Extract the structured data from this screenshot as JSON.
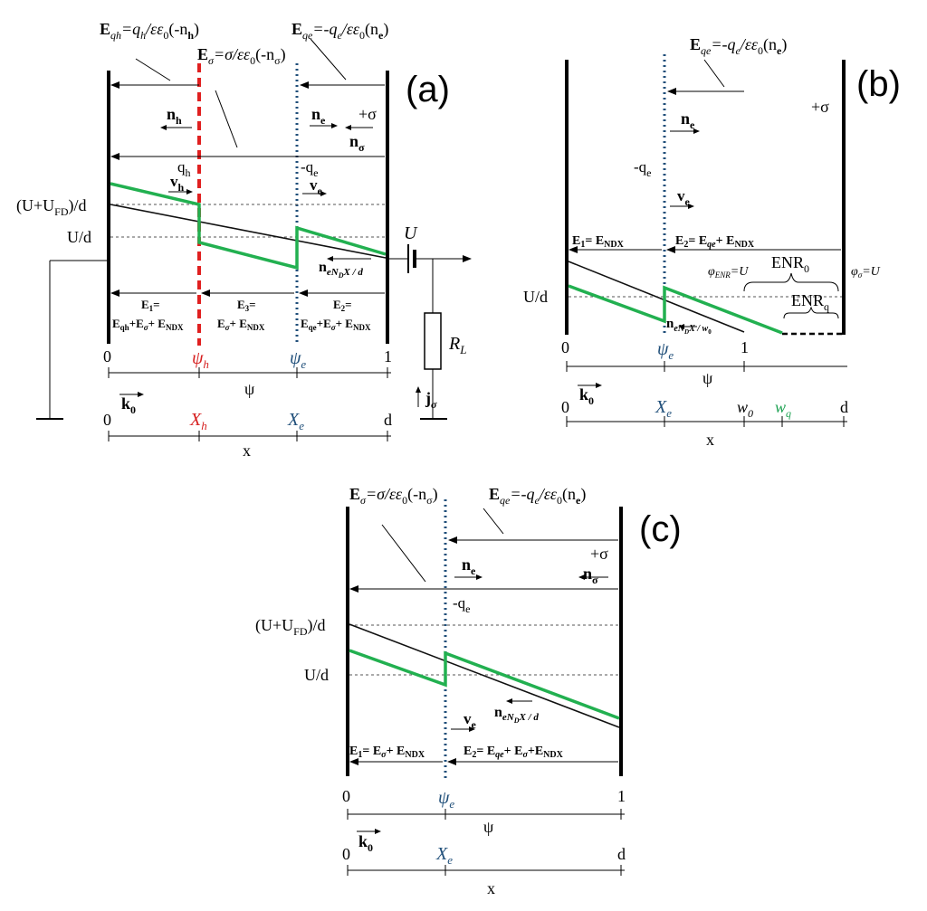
{
  "panel_a": {
    "label": "(a)",
    "eqh_main": "E",
    "eqh_sub": "qh",
    "eqh_eq": "=q",
    "eqh_sub2": "h",
    "eqh_rest": "/εε",
    "eqh_sub3": "0",
    "eqh_end": "(-n",
    "eqh_sub4": "h",
    "eqh_close": ")",
    "esig_main": "E",
    "esig_sub": "σ",
    "esig_rest": "=σ/εε",
    "esig_sub2": "0",
    "esig_end": "(-n",
    "esig_sub3": "σ",
    "esig_close": ")",
    "eqe_main": "E",
    "eqe_sub": "qe",
    "eqe_eq": "=-q",
    "eqe_sub2": "e",
    "eqe_rest": "/εε",
    "eqe_sub3": "0",
    "eqe_end": "(n",
    "eqe_sub4": "e",
    "eqe_close": ")",
    "nh": "n",
    "nh_sub": "h",
    "ne": "n",
    "ne_sub": "e",
    "plus_sigma": "+σ",
    "nsigma": "n",
    "nsigma_sub": "σ",
    "qh": "q",
    "qh_sub": "h",
    "qe": "-q",
    "qe_sub": "e",
    "vh": "v",
    "vh_sub": "h",
    "ve": "v",
    "ve_sub": "e",
    "ufd": "(U+U",
    "ufd_sub": "FD",
    "ufd_end": ")/d",
    "ud": "U/d",
    "U": "U",
    "nND": "n",
    "nND_sub": "eN",
    "nND_sub2": "D",
    "nND_end": "X / d",
    "e1_line1": "E",
    "e1_line1_sub": "1",
    "e1_line1_end": "=",
    "e1_line2": "E",
    "e1_l2s1": "qh",
    "e1_l2p1": "+E",
    "e1_l2s2": "σ",
    "e1_l2p2": "+ E",
    "e1_l2s3": "NDX",
    "e3_line1": "E",
    "e3_line1_sub": "3",
    "e3_line1_end": "=",
    "e3_line2": "E",
    "e3_l2s1": "σ",
    "e3_l2p1": "+ E",
    "e3_l2s2": "NDX",
    "e2_line1": "E",
    "e2_line1_sub": "2",
    "e2_line1_end": "=",
    "e2_line2": "E",
    "e2_l2s1": "qe",
    "e2_l2p1": "+E",
    "e2_l2s2": "σ",
    "e2_l2p2": "+ E",
    "e2_l2s3": "NDX",
    "RL": "R",
    "RL_sub": "L",
    "jsig": "j",
    "jsig_sub": "σ",
    "t0": "0",
    "psi_h": "ψ",
    "psi_h_sub": "h",
    "psi_e": "ψ",
    "psi_e_sub": "e",
    "t1": "1",
    "k0": "k",
    "k0_sub": "0",
    "psi": "ψ",
    "x0": "0",
    "Xh": "X",
    "Xh_sub": "h",
    "Xe": "X",
    "Xe_sub": "e",
    "d": "d",
    "x": "x"
  },
  "panel_b": {
    "label": "(b)",
    "eqe_main": "E",
    "eqe_sub": "qe",
    "eqe_eq": "=-q",
    "eqe_sub2": "e",
    "eqe_rest": "/εε",
    "eqe_sub3": "0",
    "eqe_end": "(n",
    "eqe_sub4": "e",
    "eqe_close": ")",
    "ne": "n",
    "ne_sub": "e",
    "plus_sigma": "+σ",
    "qe": "-q",
    "qe_sub": "e",
    "ve": "v",
    "ve_sub": "e",
    "e1": "E",
    "e1_sub": "1",
    "e1_rest": "= E",
    "e1_sub2": "NDX",
    "e2": "E",
    "e2_sub": "2",
    "e2_rest": "= E",
    "e2_sub2": "qe",
    "e2_rest2": "+ E",
    "e2_sub3": "NDX",
    "phi_enr": "φ",
    "phi_enr_sub": "ENR",
    "phi_enr_end": "=U",
    "enr0": "ENR",
    "enr0_sub": "0",
    "phi_sig": "φ",
    "phi_sig_sub": "σ",
    "phi_sig_end": "=U",
    "ud": "U/d",
    "enrq": "ENR",
    "enrq_sub": "q",
    "nND": "n",
    "nND_sub": "eN",
    "nND_sub2": "D",
    "nND_end": "X / w",
    "nND_sub3": "0",
    "t0": "0",
    "psi_e": "ψ",
    "psi_e_sub": "e",
    "t1": "1",
    "k0": "k",
    "k0_sub": "0",
    "psi": "ψ",
    "x0": "0",
    "Xe": "X",
    "Xe_sub": "e",
    "w0": "w",
    "w0_sub": "0",
    "wq": "w",
    "wq_sub": "q",
    "d": "d",
    "x": "x"
  },
  "panel_c": {
    "label": "(c)",
    "esig_main": "E",
    "esig_sub": "σ",
    "esig_rest": "=σ/εε",
    "esig_sub2": "0",
    "esig_end": "(-n",
    "esig_sub3": "σ",
    "esig_close": ")",
    "eqe_main": "E",
    "eqe_sub": "qe",
    "eqe_eq": "=-q",
    "eqe_sub2": "e",
    "eqe_rest": "/εε",
    "eqe_sub3": "0",
    "eqe_end": "(n",
    "eqe_sub4": "e",
    "eqe_close": ")",
    "plus_sigma": "+σ",
    "ne": "n",
    "ne_sub": "e",
    "nsigma": "n",
    "nsigma_sub": "σ",
    "qe": "-q",
    "qe_sub": "e",
    "ufd": "(U+U",
    "ufd_sub": "FD",
    "ufd_end": ")/d",
    "ud": "U/d",
    "nND": "n",
    "nND_sub": "eN",
    "nND_sub2": "D",
    "nND_end": "X / d",
    "ve": "v",
    "ve_sub": "e",
    "e1": "E",
    "e1_sub": "1",
    "e1_rest": "= E",
    "e1_sub2": "σ",
    "e1_rest2": "+ E",
    "e1_sub3": "NDX",
    "e2": "E",
    "e2_sub": "2",
    "e2_rest": "= E",
    "e2_sub2": "qe",
    "e2_rest2": "+ E",
    "e2_sub3": "σ",
    "e2_rest3": "+E",
    "e2_sub4": "NDX",
    "t0": "0",
    "psi_e": "ψ",
    "psi_e_sub": "e",
    "t1": "1",
    "k0": "k",
    "k0_sub": "0",
    "psi": "ψ",
    "x0": "0",
    "Xe": "X",
    "Xe_sub": "e",
    "d": "d",
    "x": "x"
  },
  "colors": {
    "potential_line": "#22b050",
    "electron_sheet": "#1f4e79",
    "hole_sheet": "#e02020"
  }
}
